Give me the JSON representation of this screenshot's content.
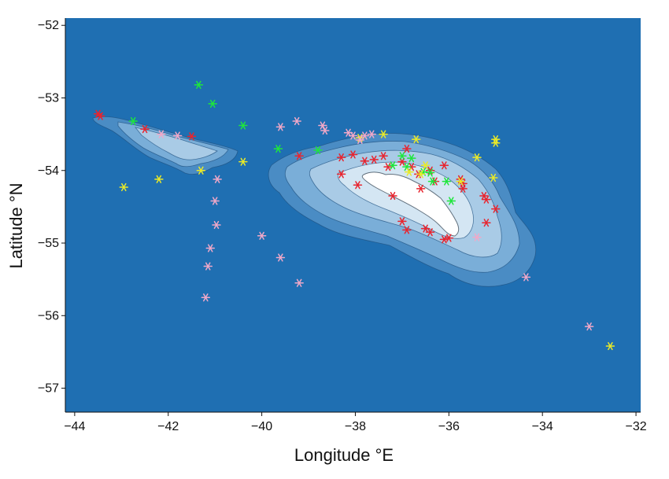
{
  "chart_data": {
    "type": "scatter",
    "title": "",
    "xlabel": "Longitude °E",
    "ylabel": "Latitude °N",
    "xlim": [
      -44.2,
      -31.9
    ],
    "ylim": [
      -57.33,
      -51.9
    ],
    "xticks": [
      -44,
      -42,
      -40,
      -38,
      -36,
      -34,
      -32
    ],
    "yticks": [
      -52,
      -53,
      -54,
      -55,
      -56,
      -57
    ],
    "xtick_labels": [
      "−44",
      "−42",
      "−40",
      "−38",
      "−36",
      "−34",
      "−32"
    ],
    "ytick_labels": [
      "−52",
      "−53",
      "−54",
      "−55",
      "−56",
      "−57"
    ],
    "grid": false,
    "legend": "none",
    "background_color": "#1f6fb2",
    "contour_colors": [
      "#4a8cc4",
      "#7aaed8",
      "#a9cbe6",
      "#d4e6f3",
      "#ffffff"
    ],
    "series": [
      {
        "color": "#e8252f",
        "points": [
          [
            -43.5,
            -53.22
          ],
          [
            -43.45,
            -53.25
          ],
          [
            -42.5,
            -53.43
          ],
          [
            -41.5,
            -53.53
          ],
          [
            -39.2,
            -53.8
          ],
          [
            -38.3,
            -54.05
          ],
          [
            -38.3,
            -53.82
          ],
          [
            -38.05,
            -53.78
          ],
          [
            -37.8,
            -53.87
          ],
          [
            -37.95,
            -54.2
          ],
          [
            -37.6,
            -53.85
          ],
          [
            -37.4,
            -53.8
          ],
          [
            -37.2,
            -54.35
          ],
          [
            -37.3,
            -53.95
          ],
          [
            -37.0,
            -53.88
          ],
          [
            -36.9,
            -53.7
          ],
          [
            -36.8,
            -53.95
          ],
          [
            -36.65,
            -54.05
          ],
          [
            -36.6,
            -54.25
          ],
          [
            -36.4,
            -54.0
          ],
          [
            -36.3,
            -54.15
          ],
          [
            -36.1,
            -53.93
          ],
          [
            -35.7,
            -54.18
          ],
          [
            -35.7,
            -54.25
          ],
          [
            -35.75,
            -54.12
          ],
          [
            -35.25,
            -54.35
          ],
          [
            -35.2,
            -54.4
          ],
          [
            -35.0,
            -54.53
          ],
          [
            -35.2,
            -54.72
          ],
          [
            -36.0,
            -54.93
          ],
          [
            -36.1,
            -54.95
          ],
          [
            -36.4,
            -54.85
          ],
          [
            -36.5,
            -54.8
          ],
          [
            -36.9,
            -54.82
          ],
          [
            -37.0,
            -54.7
          ]
        ]
      },
      {
        "color": "#1ee63c",
        "points": [
          [
            -41.35,
            -52.82
          ],
          [
            -41.05,
            -53.08
          ],
          [
            -40.4,
            -53.38
          ],
          [
            -42.75,
            -53.32
          ],
          [
            -39.65,
            -53.7
          ],
          [
            -38.8,
            -53.72
          ],
          [
            -37.0,
            -53.8
          ],
          [
            -37.2,
            -53.93
          ],
          [
            -36.9,
            -53.95
          ],
          [
            -36.8,
            -53.83
          ],
          [
            -36.4,
            -54.03
          ],
          [
            -36.35,
            -54.15
          ],
          [
            -36.55,
            -54.02
          ],
          [
            -36.05,
            -54.15
          ],
          [
            -35.95,
            -54.42
          ]
        ]
      },
      {
        "color": "#eaea28",
        "points": [
          [
            -42.95,
            -54.23
          ],
          [
            -42.2,
            -54.12
          ],
          [
            -41.3,
            -54.0
          ],
          [
            -40.4,
            -53.88
          ],
          [
            -37.9,
            -53.55
          ],
          [
            -37.4,
            -53.5
          ],
          [
            -36.7,
            -53.57
          ],
          [
            -36.85,
            -54.02
          ],
          [
            -36.5,
            -53.93
          ],
          [
            -36.6,
            -54.05
          ],
          [
            -35.4,
            -53.82
          ],
          [
            -35.0,
            -53.57
          ],
          [
            -35.0,
            -53.62
          ],
          [
            -35.05,
            -54.1
          ],
          [
            -35.75,
            -54.15
          ],
          [
            -32.55,
            -56.42
          ]
        ]
      },
      {
        "color": "#f0a8c8",
        "points": [
          [
            -42.15,
            -53.5
          ],
          [
            -41.8,
            -53.52
          ],
          [
            -39.6,
            -53.4
          ],
          [
            -39.25,
            -53.32
          ],
          [
            -38.7,
            -53.38
          ],
          [
            -38.65,
            -53.45
          ],
          [
            -38.15,
            -53.48
          ],
          [
            -38.05,
            -53.52
          ],
          [
            -37.9,
            -53.58
          ],
          [
            -37.8,
            -53.52
          ],
          [
            -37.65,
            -53.5
          ],
          [
            -40.95,
            -54.12
          ],
          [
            -41.0,
            -54.42
          ],
          [
            -40.97,
            -54.75
          ],
          [
            -41.1,
            -55.07
          ],
          [
            -41.15,
            -55.32
          ],
          [
            -41.2,
            -55.75
          ],
          [
            -40.0,
            -54.9
          ],
          [
            -39.6,
            -55.2
          ],
          [
            -39.2,
            -55.55
          ],
          [
            -35.4,
            -54.92
          ],
          [
            -34.35,
            -55.47
          ],
          [
            -33.0,
            -56.15
          ]
        ]
      }
    ]
  }
}
